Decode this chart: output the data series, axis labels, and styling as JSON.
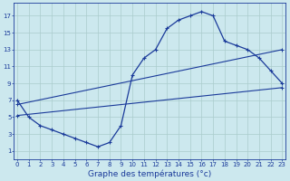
{
  "xlabel": "Graphe des températures (°c)",
  "bg_color": "#cce8ee",
  "grid_color": "#aacccc",
  "line_color": "#1a3a9a",
  "x_ticks": [
    0,
    1,
    2,
    3,
    4,
    5,
    6,
    7,
    8,
    9,
    10,
    11,
    12,
    13,
    14,
    15,
    16,
    17,
    18,
    19,
    20,
    21,
    22,
    23
  ],
  "y_ticks": [
    1,
    3,
    5,
    7,
    9,
    11,
    13,
    15,
    17
  ],
  "ylim": [
    0.0,
    18.5
  ],
  "xlim": [
    -0.3,
    23.3
  ],
  "line1_x": [
    0,
    1,
    2,
    3,
    4,
    5,
    6,
    7,
    8,
    9,
    10,
    11,
    12,
    13,
    14,
    15,
    16,
    17,
    18,
    19,
    20,
    21,
    22,
    23
  ],
  "line1_y": [
    7,
    5,
    4,
    3.5,
    3,
    2.5,
    2,
    1.5,
    2,
    4,
    10,
    12,
    13,
    15.5,
    16.5,
    17,
    17.5,
    17,
    14,
    13.5,
    13,
    12,
    10.5,
    9
  ],
  "line2_x": [
    0,
    23
  ],
  "line2_y": [
    6.5,
    13.0
  ],
  "line3_x": [
    0,
    23
  ],
  "line3_y": [
    5.2,
    8.5
  ],
  "xlabel_fontsize": 6.5,
  "tick_fontsize": 5.0
}
